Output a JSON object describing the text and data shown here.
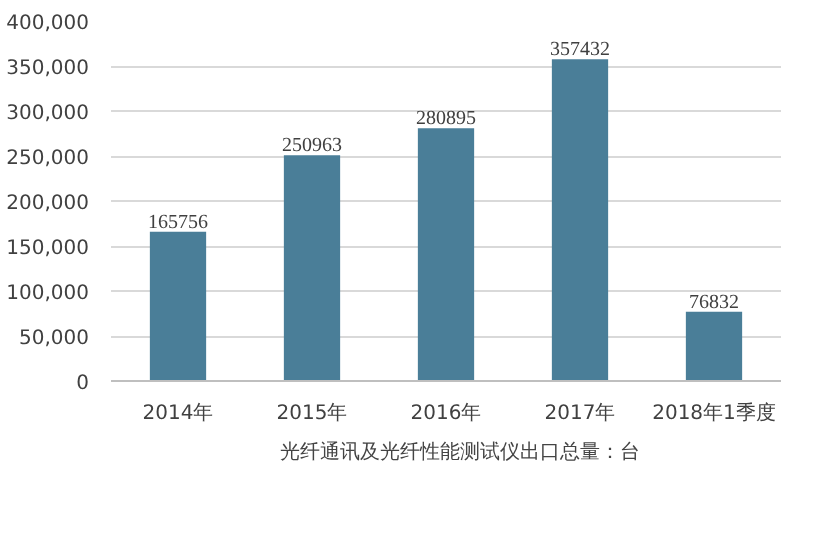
{
  "chart_data": {
    "type": "bar",
    "categories": [
      "2014年",
      "2015年",
      "2016年",
      "2017年",
      "2018年1季度"
    ],
    "series": [
      {
        "name": "光纤通讯及光纤性能测试仪出口总量：台",
        "color": "#4a7e98",
        "values": [
          165756,
          250963,
          280895,
          357432,
          76832
        ]
      }
    ],
    "ylim": [
      0,
      400000
    ],
    "yticks": [
      {
        "value": 0,
        "label": "0"
      },
      {
        "value": 50000,
        "label": "50,000"
      },
      {
        "value": 100000,
        "label": "100,000"
      },
      {
        "value": 150000,
        "label": "150,000"
      },
      {
        "value": 200000,
        "label": "200,000"
      },
      {
        "value": 250000,
        "label": "250,000"
      },
      {
        "value": 300000,
        "label": "300,000"
      },
      {
        "value": 350000,
        "label": "350,000"
      },
      {
        "value": 400000,
        "label": "400,000"
      }
    ],
    "grid": "y",
    "legend": "bottom",
    "data_labels": true
  }
}
